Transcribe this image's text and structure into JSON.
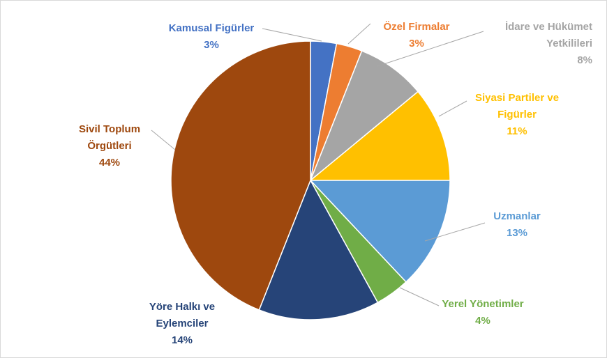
{
  "chart_data": {
    "type": "pie",
    "categories": [
      "Kamusal Figürler",
      "Özel Firmalar",
      "İdare ve Hükümet Yetkilileri",
      "Siyasi Partiler ve Figürler",
      "Uzmanlar",
      "Yerel Yönetimler",
      "Yöre Halkı ve Eylemciler",
      "Sivil Toplum Örgütleri"
    ],
    "values": [
      3,
      3,
      8,
      11,
      13,
      4,
      14,
      44
    ],
    "value_labels": [
      "3%",
      "3%",
      "8%",
      "11%",
      "13%",
      "4%",
      "14%",
      "44%"
    ],
    "colors": [
      "#4472c4",
      "#ed7d31",
      "#a5a5a5",
      "#ffc000",
      "#5b9bd5",
      "#70ad47",
      "#264478",
      "#9e480e"
    ]
  }
}
